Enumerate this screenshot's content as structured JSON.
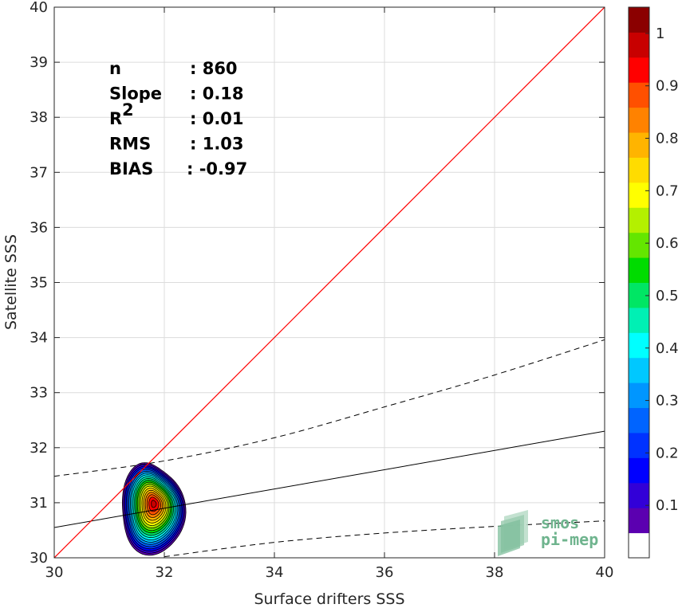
{
  "chart_data": {
    "type": "contour",
    "xlabel": "Surface drifters SSS",
    "ylabel": "Satellite SSS",
    "xlim": [
      30,
      40
    ],
    "ylim": [
      30,
      40
    ],
    "x_ticks": [
      "30",
      "32",
      "34",
      "36",
      "38",
      "40"
    ],
    "y_ticks": [
      "30",
      "31",
      "32",
      "33",
      "34",
      "35",
      "36",
      "37",
      "38",
      "39",
      "40"
    ],
    "grid": true,
    "stats": [
      {
        "label": "n",
        "sep": ": ",
        "value": "860"
      },
      {
        "label": "Slope",
        "sep": ": ",
        "value": "0.18"
      },
      {
        "label": "R",
        "sup": "2",
        "sep": ": ",
        "value": "0.01"
      },
      {
        "label": "RMS",
        "sep": ": ",
        "value": "1.03"
      },
      {
        "label": "BIAS",
        "sep": ": ",
        "value": "-0.97"
      }
    ],
    "identity_line": {
      "color": "#ff0000",
      "points": [
        [
          30,
          30
        ],
        [
          40,
          40
        ]
      ]
    },
    "regression_line": {
      "color": "#000000",
      "points": [
        [
          30,
          30.55
        ],
        [
          40,
          32.3
        ]
      ]
    },
    "upper_bound": {
      "style": "dashed",
      "points": [
        [
          30,
          31.48
        ],
        [
          32,
          31.76
        ],
        [
          34,
          32.18
        ],
        [
          36,
          32.74
        ],
        [
          38,
          33.32
        ],
        [
          40,
          33.96
        ]
      ]
    },
    "lower_bound": {
      "style": "dashed",
      "points": [
        [
          32,
          30.02
        ],
        [
          34,
          30.28
        ],
        [
          36,
          30.45
        ],
        [
          38,
          30.57
        ],
        [
          40,
          30.67
        ]
      ]
    },
    "density": {
      "center": [
        31.78,
        30.9
      ],
      "levels": [
        0.05,
        0.1,
        0.15,
        0.2,
        0.25,
        0.3,
        0.35,
        0.4,
        0.45,
        0.5,
        0.55,
        0.6,
        0.65,
        0.7,
        0.75,
        0.8,
        0.85,
        0.9,
        0.95,
        1.0
      ],
      "colors": [
        "#5b00b0",
        "#3200d8",
        "#0000ff",
        "#0032ff",
        "#0064ff",
        "#0096ff",
        "#00c8ff",
        "#00ffff",
        "#00f0b4",
        "#00e664",
        "#00dc00",
        "#64e600",
        "#b4f000",
        "#ffff00",
        "#ffdc00",
        "#ffb400",
        "#ff8200",
        "#ff5000",
        "#ff0000",
        "#c80000"
      ],
      "outer_extent": {
        "x": [
          31.25,
          32.4
        ],
        "y": [
          30.1,
          31.75
        ]
      }
    },
    "colorbar": {
      "ticks": [
        "0.1",
        "0.2",
        "0.3",
        "0.4",
        "0.5",
        "0.6",
        "0.7",
        "0.8",
        "0.9",
        "1"
      ],
      "colors": [
        "#ffffff",
        "#5b00b0",
        "#3200d8",
        "#0000ff",
        "#0032ff",
        "#0064ff",
        "#0096ff",
        "#00c8ff",
        "#00ffff",
        "#00f0b4",
        "#00e664",
        "#00dc00",
        "#64e600",
        "#b4f000",
        "#ffff00",
        "#ffdc00",
        "#ffb400",
        "#ff8200",
        "#ff5000",
        "#ff0000",
        "#c80000",
        "#8b0000"
      ],
      "range": [
        0,
        1.05
      ]
    }
  },
  "logo": {
    "line1": "smos",
    "line2": "pi-mep",
    "color": "#6fb48e"
  }
}
